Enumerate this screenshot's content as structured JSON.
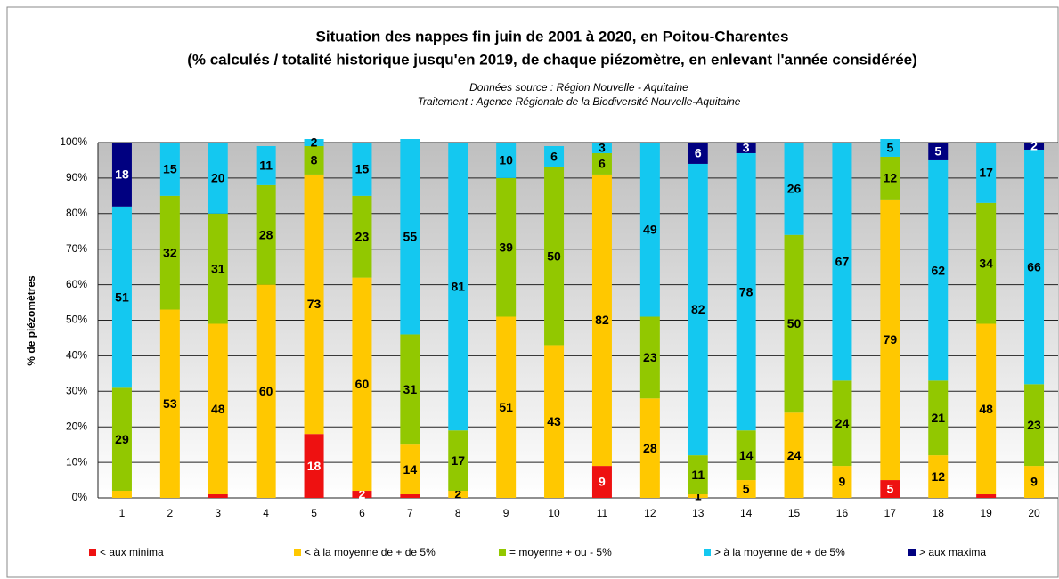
{
  "chart_data": {
    "type": "stacked_bar",
    "title": [
      "Situation des nappes fin juin de 2001 à 2020, en Poitou-Charentes",
      "(% calculés / totalité historique jusqu'en 2019, de chaque piézomètre,  en enlevant l'année considérée)"
    ],
    "subtitle": [
      "Données source : Région Nouvelle - Aquitaine",
      "Traitement : Agence Régionale de la Biodiversité Nouvelle-Aquitaine"
    ],
    "y_label": "% de piézomètres",
    "categories": [
      "1",
      "2",
      "3",
      "4",
      "5",
      "6",
      "7",
      "8",
      "9",
      "10",
      "11",
      "12",
      "13",
      "14",
      "15",
      "16",
      "17",
      "18",
      "19",
      "20"
    ],
    "ylim": [
      0,
      100
    ],
    "yticks": [
      {
        "value": 0,
        "label": "0%"
      },
      {
        "value": 10,
        "label": "10%"
      },
      {
        "value": 20,
        "label": "20%"
      },
      {
        "value": 30,
        "label": "30%"
      },
      {
        "value": 40,
        "label": "40%"
      },
      {
        "value": 50,
        "label": "50%"
      },
      {
        "value": 60,
        "label": "60%"
      },
      {
        "value": 70,
        "label": "70%"
      },
      {
        "value": 80,
        "label": "80%"
      },
      {
        "value": 90,
        "label": "90%"
      },
      {
        "value": 100,
        "label": "100%"
      }
    ],
    "grid": true,
    "legend": "bottom",
    "series": [
      {
        "name": "< aux minima",
        "color": "#ee1111",
        "label_color": "#ffffff",
        "values": [
          0,
          0,
          1,
          0,
          18,
          2,
          1,
          0,
          0,
          0,
          9,
          0,
          0,
          0,
          0,
          0,
          5,
          0,
          1,
          0
        ],
        "value_labels": [
          null,
          null,
          null,
          null,
          "18",
          "2",
          null,
          null,
          null,
          null,
          "9",
          null,
          null,
          null,
          null,
          null,
          "5",
          null,
          null,
          null
        ]
      },
      {
        "name": "< à la moyenne de + de 5%",
        "color": "#ffc800",
        "label_color": "#000000",
        "values": [
          2,
          53,
          48,
          60,
          73,
          60,
          14,
          2,
          51,
          43,
          82,
          28,
          1,
          5,
          24,
          9,
          79,
          12,
          48,
          9
        ],
        "value_labels": [
          null,
          "53",
          "48",
          "60",
          "73",
          "60",
          "14",
          "2",
          "51",
          "43",
          "82",
          "28",
          "1",
          "5",
          "24",
          "9",
          "79",
          "12",
          "48",
          "9"
        ]
      },
      {
        "name": "= moyenne + ou - 5%",
        "color": "#92c800",
        "label_color": "#000000",
        "values": [
          29,
          32,
          31,
          28,
          8,
          23,
          31,
          17,
          39,
          50,
          6,
          23,
          11,
          14,
          50,
          24,
          12,
          21,
          34,
          23
        ],
        "value_labels": [
          "29",
          "32",
          "31",
          "28",
          "8",
          "23",
          "31",
          "17",
          "39",
          "50",
          "6",
          "23",
          "11",
          "14",
          "50",
          "24",
          "12",
          "21",
          "34",
          "23"
        ]
      },
      {
        "name": "> à la moyenne de + de 5%",
        "color": "#14c8f0",
        "label_color": "#000000",
        "values": [
          51,
          15,
          20,
          11,
          2,
          15,
          55,
          81,
          10,
          6,
          3,
          49,
          82,
          78,
          26,
          67,
          5,
          62,
          17,
          66
        ],
        "value_labels": [
          "51",
          "15",
          "20",
          "11",
          "2",
          "15",
          "55",
          "81",
          "10",
          "6",
          "3",
          "49",
          "82",
          "78",
          "26",
          "67",
          "5",
          "62",
          "17",
          "66"
        ]
      },
      {
        "name": "> aux maxima",
        "color": "#000080",
        "label_color": "#ffffff",
        "values": [
          18,
          0,
          0,
          0,
          0,
          0,
          0,
          0,
          0,
          0,
          0,
          0,
          6,
          3,
          0,
          0,
          0,
          5,
          0,
          2
        ],
        "value_labels": [
          "18",
          null,
          null,
          null,
          null,
          null,
          null,
          null,
          null,
          null,
          null,
          null,
          "6",
          "3",
          null,
          null,
          null,
          "5",
          null,
          "2"
        ]
      }
    ]
  }
}
